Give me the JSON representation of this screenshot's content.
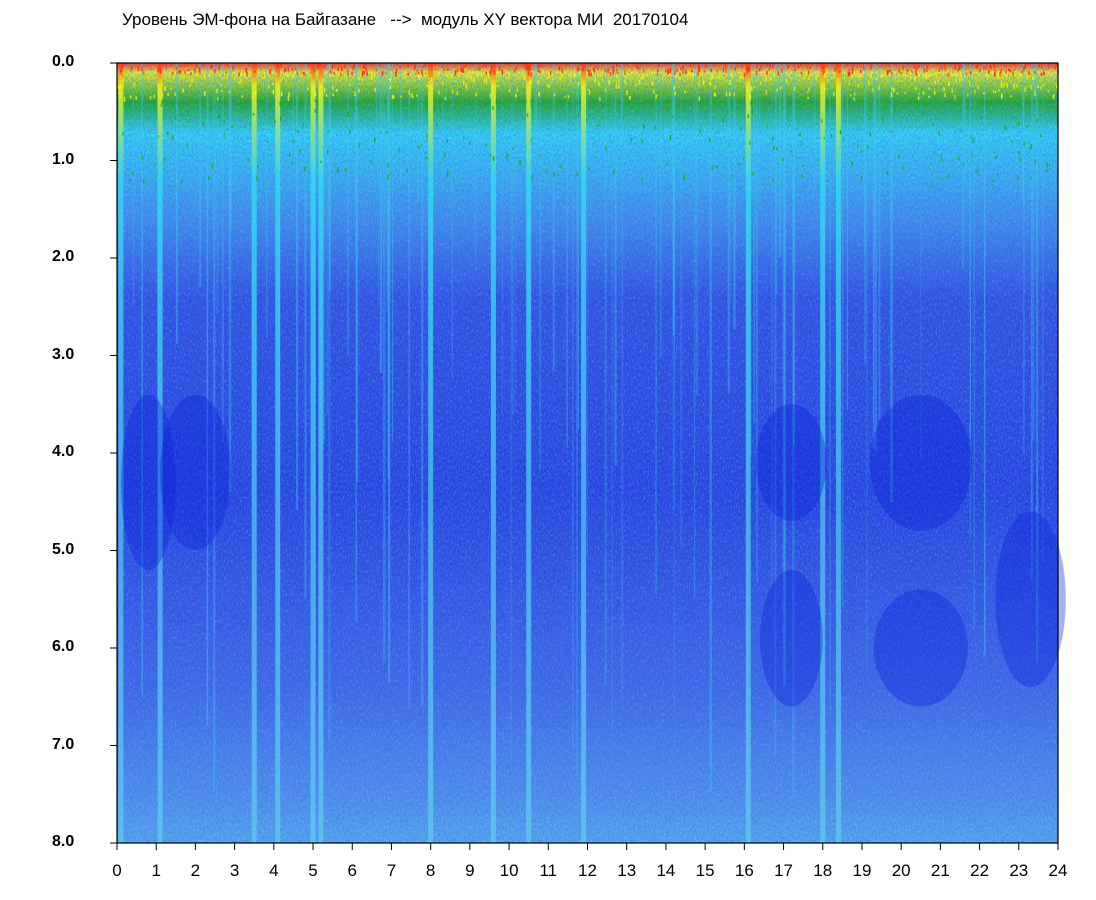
{
  "chart_data": {
    "type": "heatmap",
    "title": "Уровень ЭМ-фона на Байгазане   -->  модуль XY вектора МИ  20170104",
    "xlabel": "",
    "ylabel": "",
    "x_range": [
      0,
      24
    ],
    "y_range": [
      0,
      8.0
    ],
    "y_inverted": true,
    "x_ticks": [
      "0",
      "1",
      "2",
      "3",
      "4",
      "5",
      "6",
      "7",
      "8",
      "9",
      "10",
      "11",
      "12",
      "13",
      "14",
      "15",
      "16",
      "17",
      "18",
      "19",
      "20",
      "21",
      "22",
      "23",
      "24"
    ],
    "y_ticks": [
      "0.0",
      "1.0",
      "2.0",
      "3.0",
      "4.0",
      "5.0",
      "6.0",
      "7.0",
      "8.0"
    ],
    "colormap": [
      "#0a1fd6",
      "#4a6ae6",
      "#2fd6f2",
      "#1faa1a",
      "#f2f21e",
      "#ff2a1a"
    ],
    "bright_bands_hours": [
      0.1,
      1.1,
      3.5,
      4.1,
      5.0,
      5.2,
      8.0,
      9.6,
      10.5,
      11.9,
      16.1,
      18.0,
      18.4
    ],
    "grid": false,
    "legend": "none"
  }
}
